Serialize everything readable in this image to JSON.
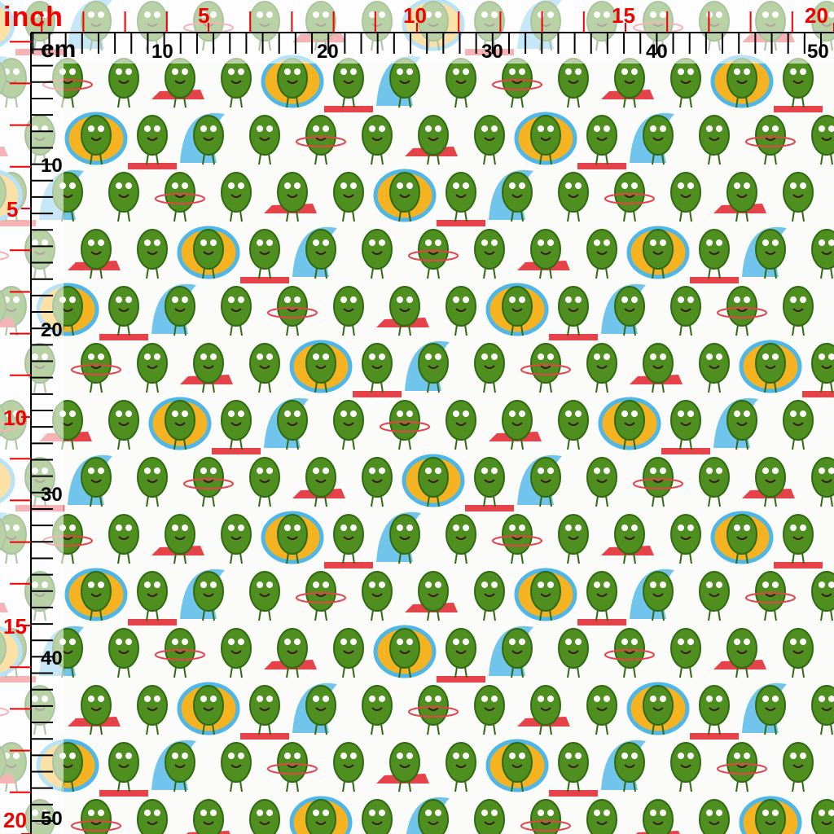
{
  "ruler": {
    "inch_unit": "inch",
    "cm_unit": "cm",
    "top_inch_labels": [
      "5",
      "10",
      "15",
      "20"
    ],
    "top_cm_labels": [
      "10",
      "20",
      "30",
      "40",
      "50"
    ],
    "left_inch_labels": [
      "5",
      "10",
      "15",
      "20"
    ],
    "left_cm_labels": [
      "10",
      "20",
      "30",
      "40",
      "50"
    ],
    "inch_color": "#f20000",
    "cm_color": "#000000"
  },
  "fabric": {
    "motif": "cartoon avocado characters pattern",
    "colors": {
      "avocado": "#4f8f1f",
      "avocado_dark": "#2f6a12",
      "water": "#4fb6e8",
      "float": "#f5b321",
      "mat": "#e5424a",
      "background": "#fbfbf9"
    }
  }
}
